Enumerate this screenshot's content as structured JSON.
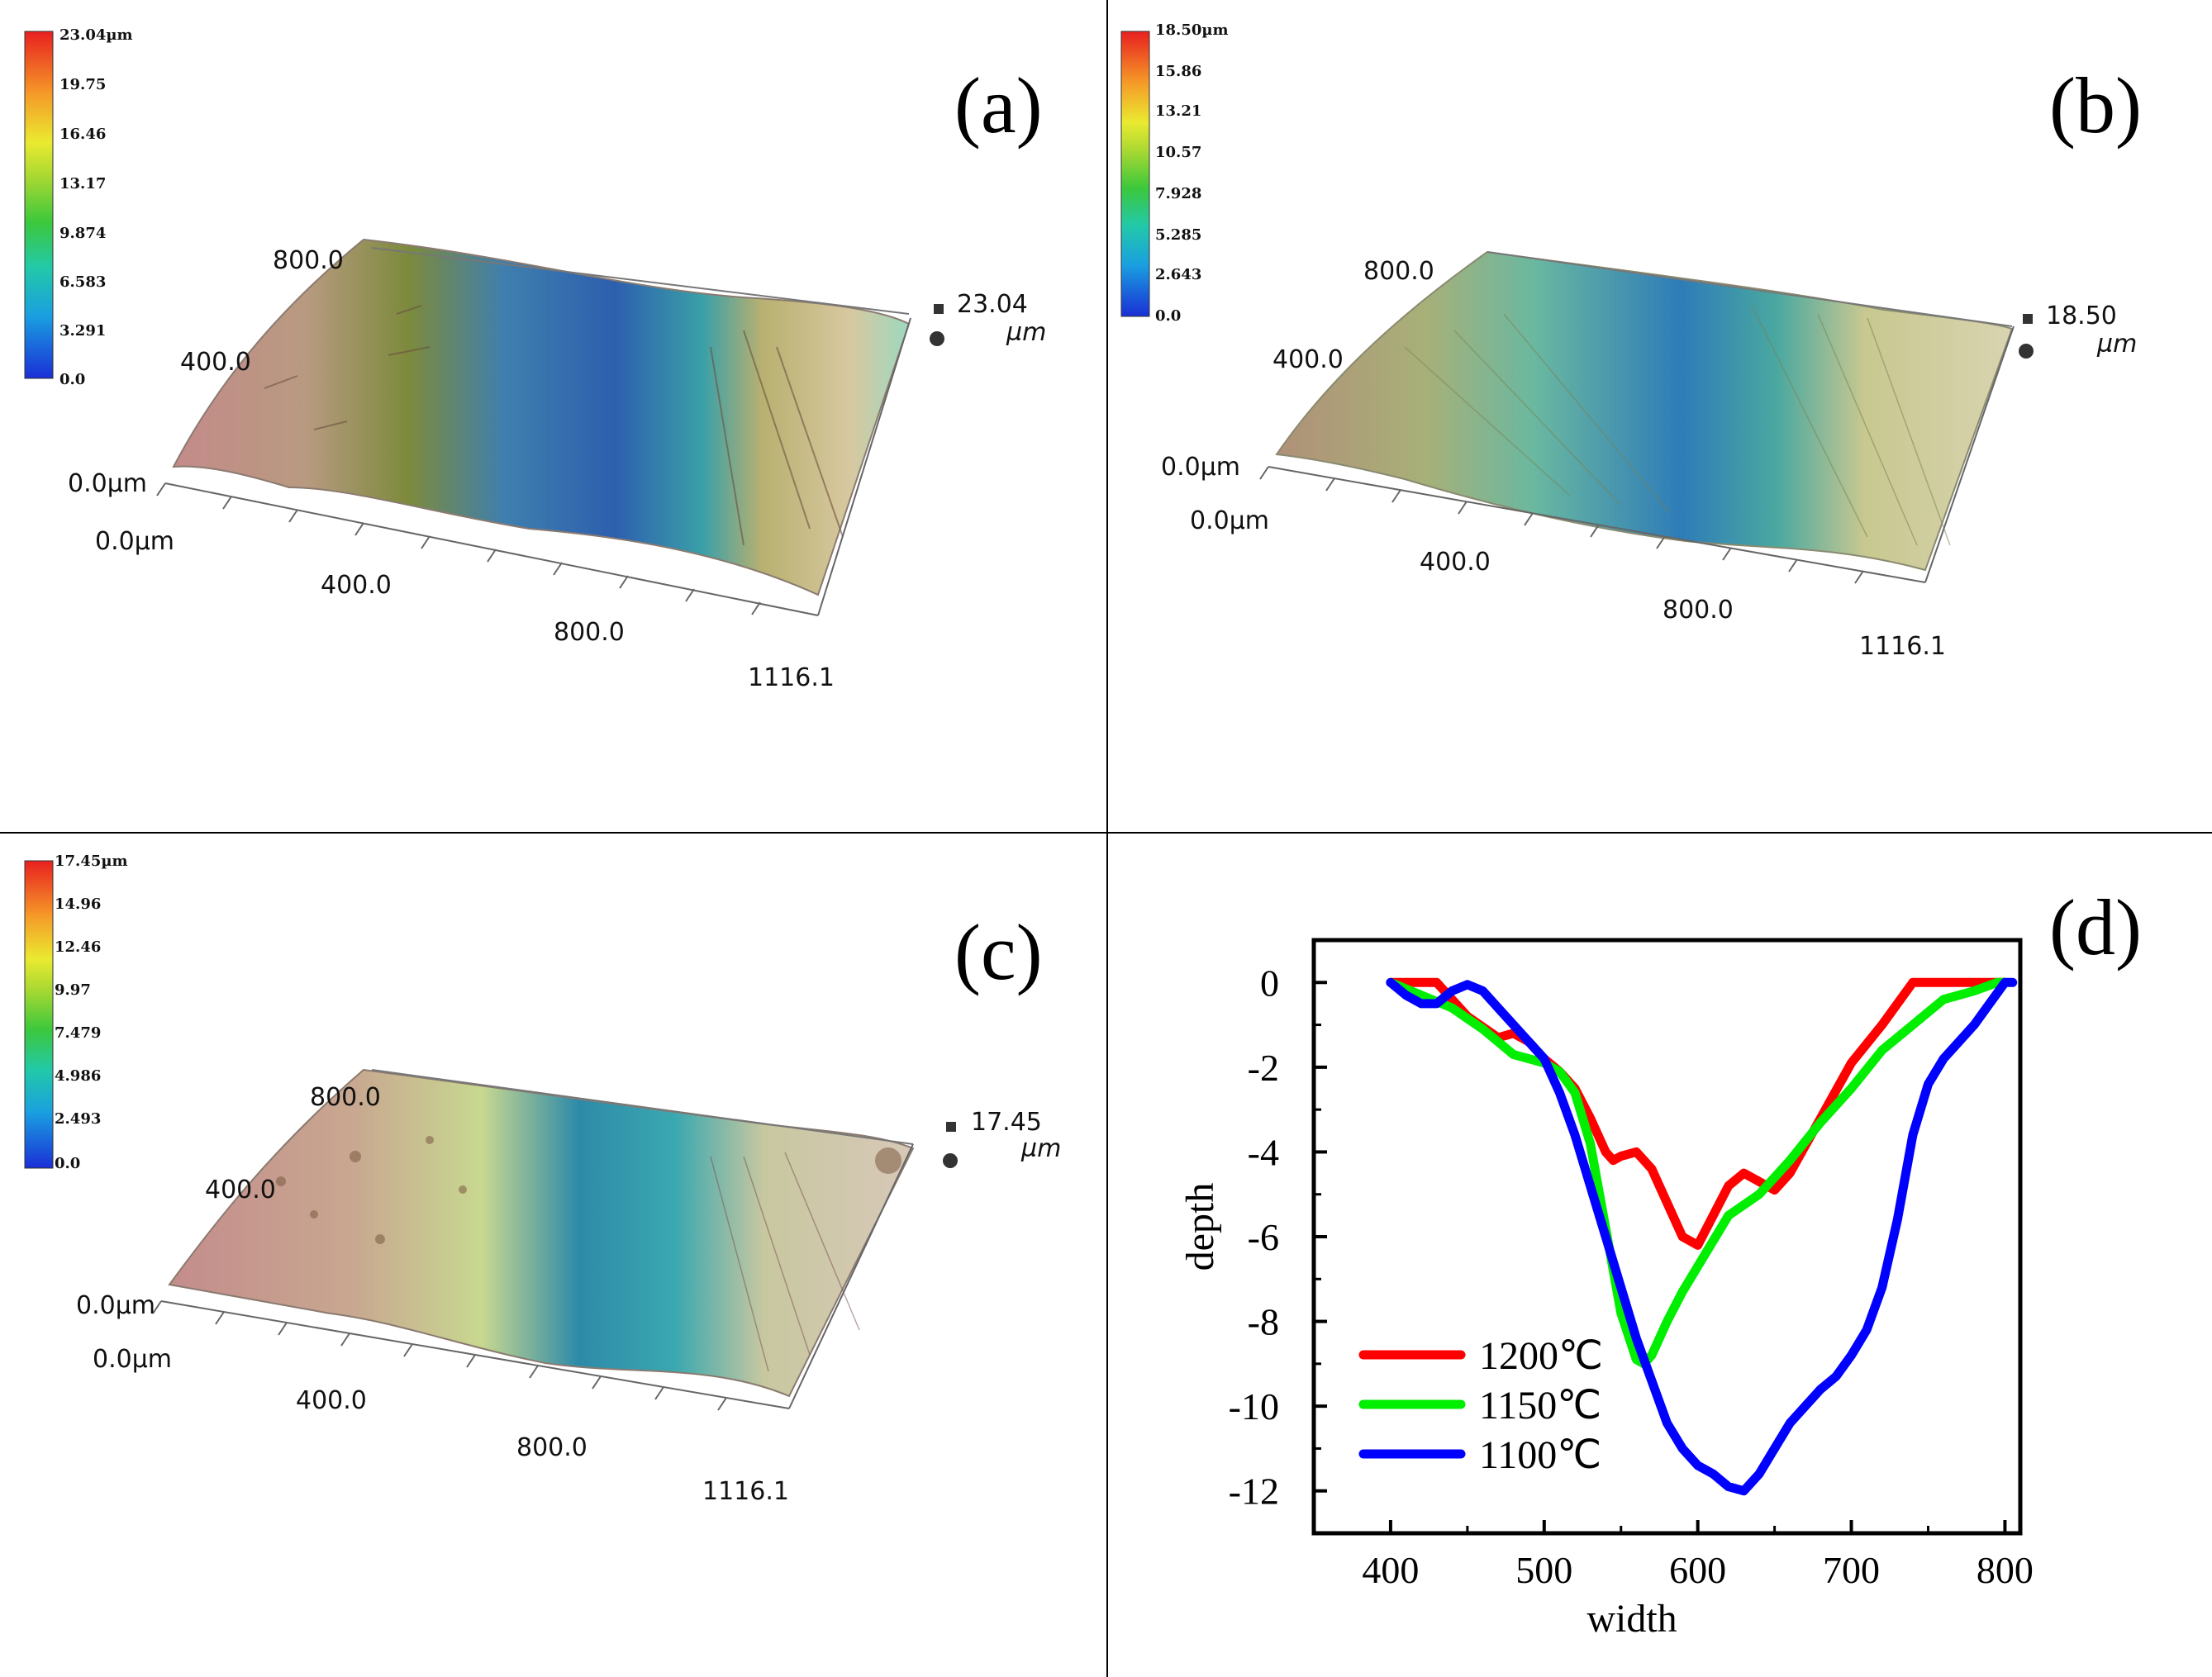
{
  "panels": [
    {
      "letter": "(a)",
      "colorbar_ticks": [
        "23.04µm",
        "19.75",
        "16.46",
        "13.17",
        "9.874",
        "6.583",
        "3.291",
        "0.0"
      ],
      "y_ticks": [
        "800.0",
        "400.0",
        "0.0µm"
      ],
      "x_ticks": [
        "0.0µm",
        "400.0",
        "800.0",
        "1116.1"
      ],
      "z_max": "23.04",
      "z_unit": "µm"
    },
    {
      "letter": "(b)",
      "colorbar_ticks": [
        "18.50µm",
        "15.86",
        "13.21",
        "10.57",
        "7.928",
        "5.285",
        "2.643",
        "0.0"
      ],
      "y_ticks": [
        "800.0",
        "400.0",
        "0.0µm"
      ],
      "x_ticks": [
        "0.0µm",
        "400.0",
        "800.0",
        "1116.1"
      ],
      "z_max": "18.50",
      "z_unit": "µm"
    },
    {
      "letter": "(c)",
      "colorbar_ticks": [
        "17.45µm",
        "14.96",
        "12.46",
        "9.97",
        "7.479",
        "4.986",
        "2.493",
        "0.0"
      ],
      "y_ticks": [
        "800.0",
        "400.0",
        "0.0µm"
      ],
      "x_ticks": [
        "0.0µm",
        "400.0",
        "800.0",
        "1116.1"
      ],
      "z_max": "17.45",
      "z_unit": "µm"
    }
  ],
  "line_panel": {
    "letter": "(d)"
  },
  "chart_data": {
    "type": "line",
    "title": "",
    "xlabel": "width",
    "ylabel": "depth",
    "xlim": [
      350,
      810
    ],
    "ylim": [
      -13,
      1
    ],
    "xticks": [
      400,
      500,
      600,
      700,
      800
    ],
    "yticks": [
      0,
      -2,
      -4,
      -6,
      -8,
      -10,
      -12
    ],
    "legend": "bottom-left",
    "series": [
      {
        "name": "1200℃",
        "color": "#ff0000",
        "x": [
          400,
          430,
          450,
          470,
          480,
          490,
          500,
          510,
          520,
          530,
          540,
          545,
          550,
          560,
          570,
          580,
          590,
          600,
          610,
          620,
          630,
          640,
          650,
          660,
          680,
          700,
          720,
          740,
          760,
          780,
          800
        ],
        "y": [
          0,
          0,
          -0.8,
          -1.3,
          -1.2,
          -1.4,
          -1.8,
          -2.1,
          -2.5,
          -3.2,
          -4.0,
          -4.2,
          -4.1,
          -4.0,
          -4.4,
          -5.2,
          -6.0,
          -6.2,
          -5.5,
          -4.8,
          -4.5,
          -4.7,
          -4.9,
          -4.5,
          -3.2,
          -1.9,
          -1.0,
          0,
          0,
          0,
          0
        ]
      },
      {
        "name": "1150℃",
        "color": "#00ee00",
        "x": [
          400,
          420,
          440,
          460,
          480,
          500,
          510,
          520,
          530,
          540,
          550,
          560,
          565,
          570,
          580,
          590,
          600,
          620,
          640,
          660,
          680,
          700,
          720,
          740,
          760,
          780,
          795,
          800
        ],
        "y": [
          0,
          -0.3,
          -0.6,
          -1.1,
          -1.7,
          -1.9,
          -2.1,
          -2.6,
          -3.8,
          -5.8,
          -7.8,
          -8.9,
          -9.0,
          -8.8,
          -8.0,
          -7.3,
          -6.7,
          -5.5,
          -5.0,
          -4.2,
          -3.3,
          -2.5,
          -1.6,
          -1.0,
          -0.4,
          -0.2,
          0,
          0
        ]
      },
      {
        "name": "1100℃",
        "color": "#0000ff",
        "x": [
          400,
          410,
          420,
          430,
          440,
          450,
          460,
          470,
          480,
          490,
          500,
          510,
          520,
          530,
          540,
          550,
          560,
          570,
          580,
          590,
          600,
          610,
          620,
          630,
          640,
          650,
          660,
          670,
          680,
          690,
          700,
          710,
          720,
          730,
          740,
          750,
          760,
          770,
          780,
          790,
          800,
          805
        ],
        "y": [
          0,
          -0.3,
          -0.5,
          -0.5,
          -0.2,
          -0.05,
          -0.2,
          -0.6,
          -1.0,
          -1.4,
          -1.8,
          -2.6,
          -3.6,
          -4.8,
          -6.0,
          -7.2,
          -8.4,
          -9.4,
          -10.4,
          -11.0,
          -11.4,
          -11.6,
          -11.9,
          -12.0,
          -11.6,
          -11.0,
          -10.4,
          -10.0,
          -9.6,
          -9.3,
          -8.8,
          -8.2,
          -7.2,
          -5.6,
          -3.6,
          -2.4,
          -1.8,
          -1.4,
          -1.0,
          -0.5,
          0,
          0
        ]
      }
    ]
  }
}
